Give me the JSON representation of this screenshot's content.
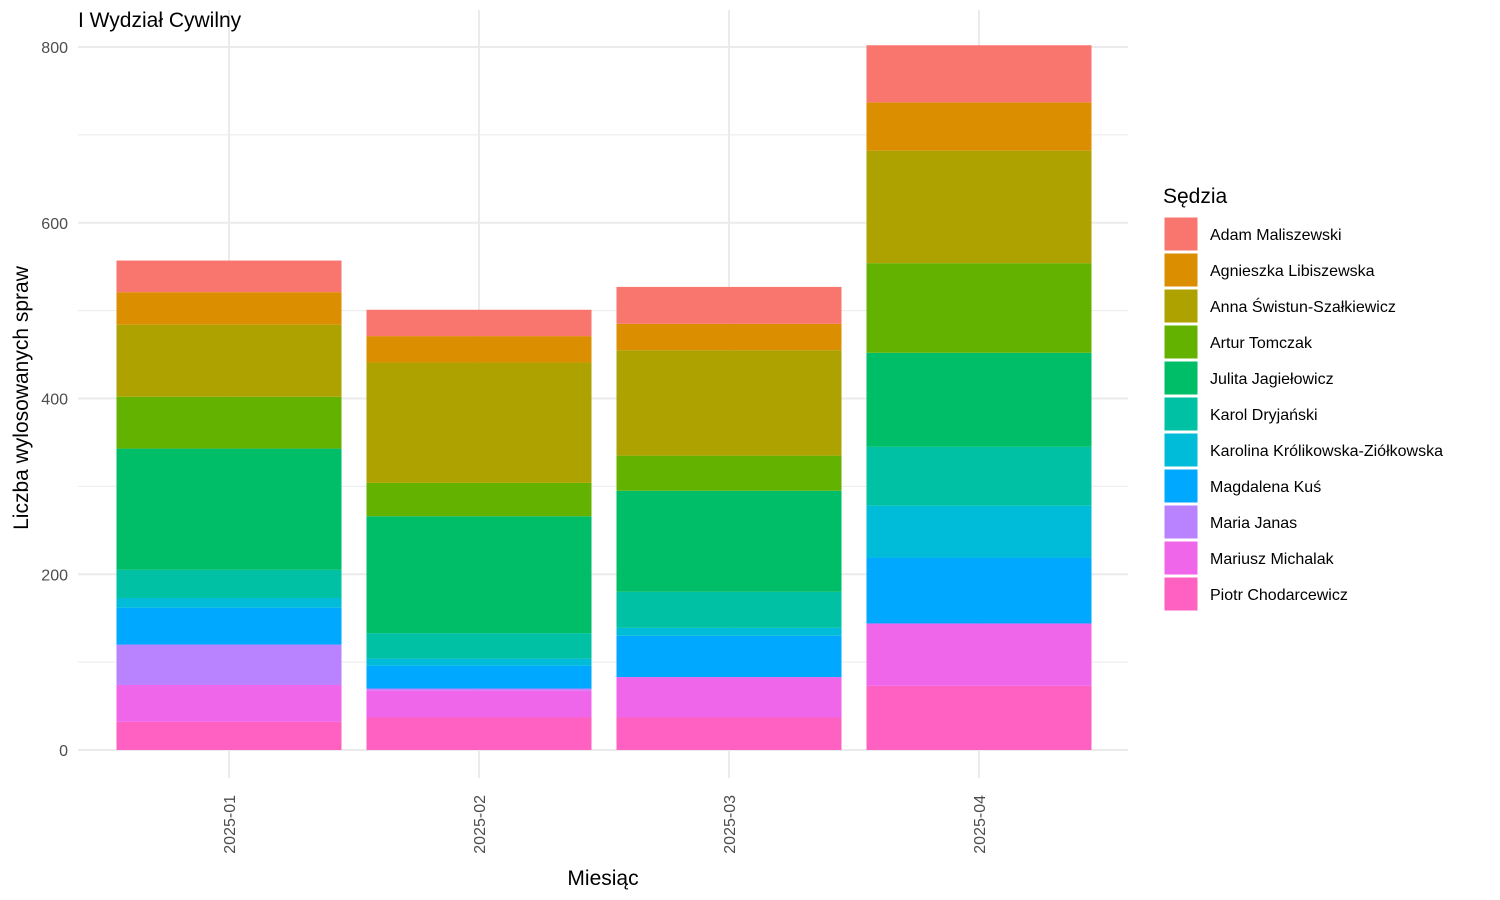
{
  "chart_data": {
    "type": "bar",
    "stacked": true,
    "title": "I Wydział Cywilny",
    "xlabel": "Miesiąc",
    "ylabel": "Liczba wylosowanych spraw",
    "ylim": [
      0,
      800
    ],
    "yticks": [
      0,
      200,
      400,
      600,
      800
    ],
    "grid": true,
    "legend": {
      "title": "Sędzia",
      "position": "right"
    },
    "categories": [
      "2025-01",
      "2025-02",
      "2025-03",
      "2025-04"
    ],
    "series": [
      {
        "name": "Piotr Chodarcewicz",
        "color": "#FF61C3",
        "values": [
          32,
          37,
          37,
          73
        ]
      },
      {
        "name": "Mariusz Michalak",
        "color": "#F066EA",
        "values": [
          42,
          31,
          46,
          71
        ]
      },
      {
        "name": "Maria Janas",
        "color": "#B983FF",
        "values": [
          46,
          2,
          0,
          0
        ]
      },
      {
        "name": "Magdalena Kuś",
        "color": "#00A9FF",
        "values": [
          42,
          26,
          47,
          75
        ]
      },
      {
        "name": "Karolina Królikowska-Ziółkowska",
        "color": "#00BCD8",
        "values": [
          11,
          8,
          9,
          59
        ]
      },
      {
        "name": "Karol Dryjański",
        "color": "#00C1A3",
        "values": [
          32,
          29,
          41,
          67
        ]
      },
      {
        "name": "Julita Jagiełowicz",
        "color": "#00BE67",
        "values": [
          138,
          133,
          115,
          107
        ]
      },
      {
        "name": "Artur Tomczak",
        "color": "#64B200",
        "values": [
          59,
          38,
          40,
          102
        ]
      },
      {
        "name": "Anna Świstun-Szałkiewicz",
        "color": "#AEA200",
        "values": [
          82,
          137,
          120,
          128
        ]
      },
      {
        "name": "Agnieszka Libiszewska",
        "color": "#DB8E00",
        "values": [
          37,
          30,
          30,
          55
        ]
      },
      {
        "name": "Adam Maliszewski",
        "color": "#F8766D",
        "values": [
          36,
          30,
          42,
          65
        ]
      }
    ],
    "legend_order": [
      "Adam Maliszewski",
      "Agnieszka Libiszewska",
      "Anna Świstun-Szałkiewicz",
      "Artur Tomczak",
      "Julita Jagiełowicz",
      "Karol Dryjański",
      "Karolina Królikowska-Ziółkowska",
      "Magdalena Kuś",
      "Maria Janas",
      "Mariusz Michalak",
      "Piotr Chodarcewicz"
    ]
  }
}
